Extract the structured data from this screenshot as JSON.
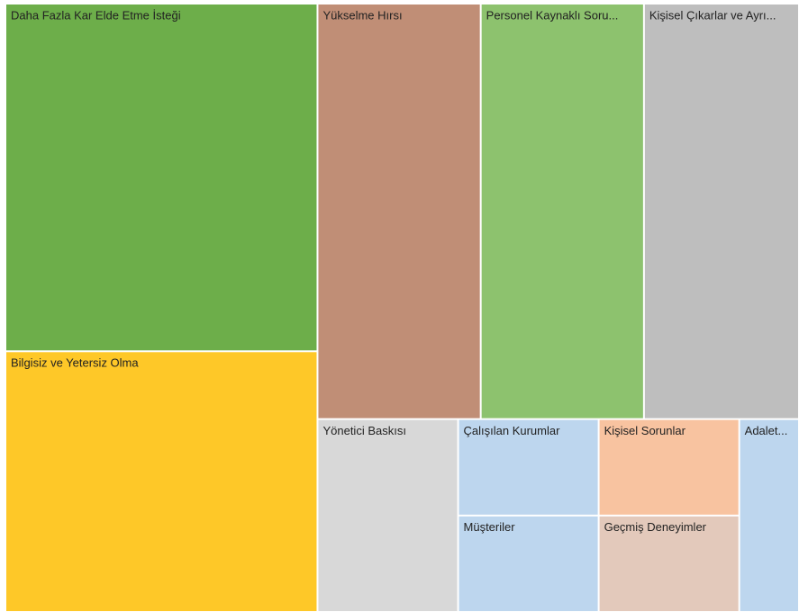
{
  "chart_data": {
    "type": "treemap",
    "categories": [
      "Daha Fazla Kar Elde Etme İsteği",
      "Bilgisiz ve Yetersiz Olma",
      "Yükselme Hırsı",
      "Personel Kaynaklı Soru...",
      "Kişisel Çıkarlar ve Ayrı...",
      "Yönetici Baskısı",
      "Çalışılan Kurumlar",
      "Müşteriler",
      "Kişisel Sorunlar",
      "Geçmiş Deneyimler",
      "Adalet..."
    ],
    "values": [
      16,
      12,
      10,
      10,
      9.5,
      4,
      2,
      2,
      2,
      2,
      1.7
    ],
    "colors": [
      "#6dae4a",
      "#fec828",
      "#c08e76",
      "#8dc26e",
      "#bebebe",
      "#d8d8d8",
      "#bdd6ee",
      "#bdd6ee",
      "#f8c3a0",
      "#e3c9bb",
      "#bdd6ee"
    ]
  }
}
